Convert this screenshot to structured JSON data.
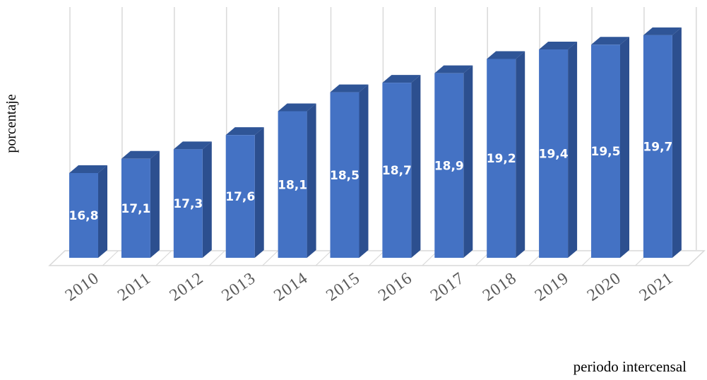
{
  "chart_data": {
    "type": "bar",
    "style": "3d-column",
    "categories": [
      "2010",
      "2011",
      "2012",
      "2013",
      "2014",
      "2015",
      "2016",
      "2017",
      "2018",
      "2019",
      "2020",
      "2021"
    ],
    "values": [
      16.8,
      17.1,
      17.3,
      17.6,
      18.1,
      18.5,
      18.7,
      18.9,
      19.2,
      19.4,
      19.5,
      19.7
    ],
    "data_labels": [
      "16,8",
      "17,1",
      "17,3",
      "17,6",
      "18,1",
      "18,5",
      "18,7",
      "18,9",
      "19,2",
      "19,4",
      "19,5",
      "19,7"
    ],
    "title": "",
    "xlabel": "periodo intercensal",
    "ylabel": "porcentaje",
    "ylim": [
      15,
      20
    ],
    "grid": true,
    "legend": "none",
    "colors": {
      "bar_front": "#4472c4",
      "bar_side": "#2c4f8f",
      "bar_top": "#2f5597",
      "gridline": "#d9d9d9",
      "tick_label": "#595959",
      "data_label": "#ffffff"
    }
  }
}
